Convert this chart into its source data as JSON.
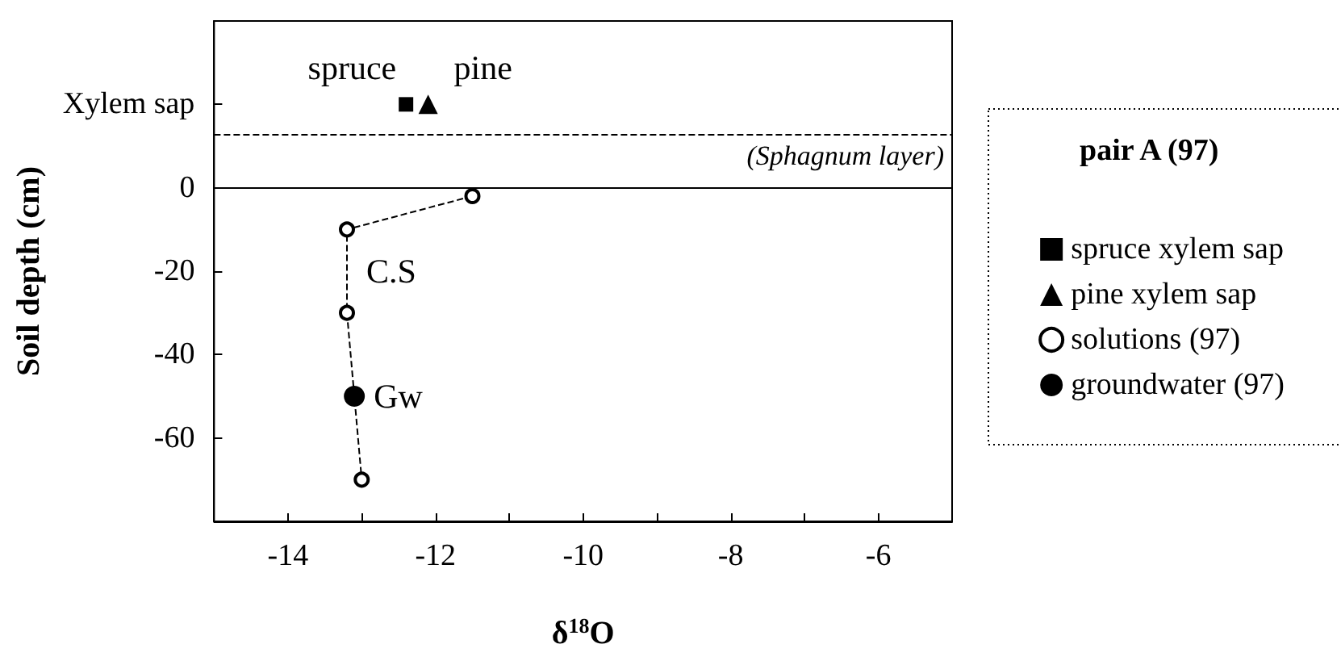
{
  "chart_data": {
    "type": "scatter",
    "xlabel": "δ$^{18}$O",
    "ylabel": "Soil depth (cm)",
    "legend_title": "pair A (97)",
    "legend": "right",
    "grid": false,
    "xlim": [
      -15,
      -5
    ],
    "xticks": [
      -14,
      {
        "value": -13,
        "label": null
      },
      -12,
      {
        "value": -11,
        "label": null
      },
      -10,
      {
        "value": -9,
        "label": null
      },
      -8,
      {
        "value": -7,
        "label": null
      },
      -6
    ],
    "ylim": [
      -80,
      40
    ],
    "yticks": [
      -60,
      -40,
      -20,
      0,
      {
        "value": 20,
        "label": "Xylem sap"
      }
    ],
    "series": [
      {
        "name": "spruce xylem sap",
        "type": "scatter",
        "marker": "square",
        "color": "#000000",
        "x": [
          -12.4
        ],
        "values": [
          20
        ]
      },
      {
        "name": "pine xylem sap",
        "type": "scatter",
        "marker": "triangle",
        "color": "#000000",
        "x": [
          -12.1
        ],
        "values": [
          20
        ]
      },
      {
        "name": "solutions (97)",
        "type": "line",
        "marker": "circle",
        "line_style": "dashed",
        "color": "#000000",
        "x": [
          -11.5,
          -13.2,
          -13.2,
          -13.0
        ],
        "values": [
          -2,
          -10,
          -30,
          -70
        ]
      },
      {
        "name": "groundwater (97)",
        "type": "scatter",
        "marker": "circle",
        "color": "#000000",
        "x": [
          -13.1
        ],
        "values": [
          -50
        ]
      }
    ],
    "ref_lines": [
      {
        "axis": "y",
        "value": 13,
        "label": "(Sphagnum layer)",
        "line_style": "dashed"
      },
      {
        "axis": "y",
        "value": 0,
        "line_style": "solid"
      }
    ],
    "annotations": [
      {
        "text": "spruce",
        "x": -12.4,
        "y": 20
      },
      {
        "text": "pine",
        "x": -12.1,
        "y": 20
      },
      {
        "text": "C.S",
        "x": -13.2,
        "y": -20
      },
      {
        "text": "Gw",
        "x": -13.1,
        "y": -50
      }
    ]
  }
}
